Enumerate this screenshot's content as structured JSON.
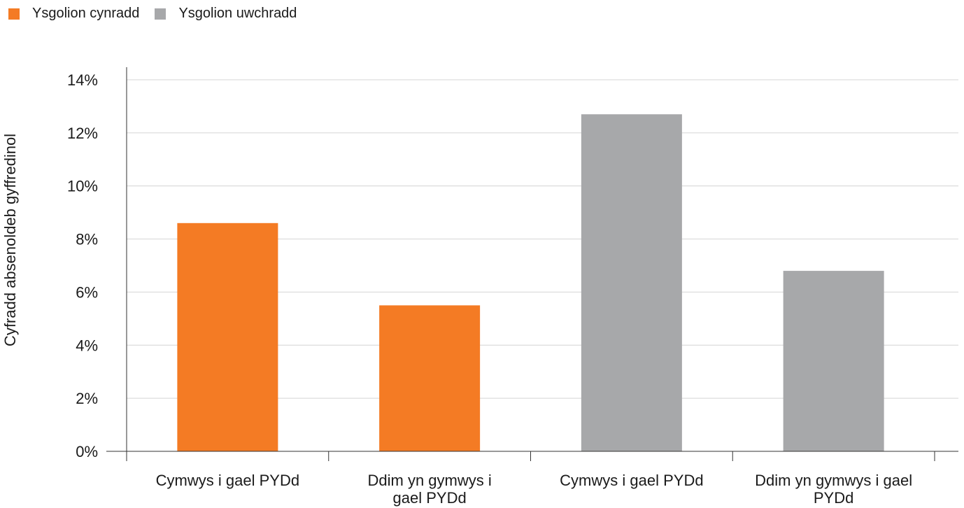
{
  "chart_data": {
    "type": "bar",
    "title": "",
    "xlabel": "",
    "ylabel": "Cyfradd absenoldeb gyffredinol",
    "ylim": [
      0,
      14
    ],
    "yticks": [
      "0%",
      "2%",
      "4%",
      "6%",
      "8%",
      "10%",
      "12%",
      "14%"
    ],
    "ytick_values": [
      0,
      2,
      4,
      6,
      8,
      10,
      12,
      14
    ],
    "grid": "horizontal",
    "legend_position": "top-left",
    "categories": [
      [
        "Cymwys i gael PYDd"
      ],
      [
        "Ddim yn gymwys i",
        "gael PYDd"
      ],
      [
        "Cymwys i gael PYDd"
      ],
      [
        "Ddim yn gymwys i gael",
        "PYDd"
      ]
    ],
    "series": [
      {
        "name": "Ysgolion cynradd",
        "color": "#f47b24",
        "values": [
          8.6,
          5.5,
          null,
          null
        ]
      },
      {
        "name": "Ysgolion uwchradd",
        "color": "#a7a8aa",
        "values": [
          null,
          null,
          12.7,
          6.8
        ]
      }
    ]
  }
}
